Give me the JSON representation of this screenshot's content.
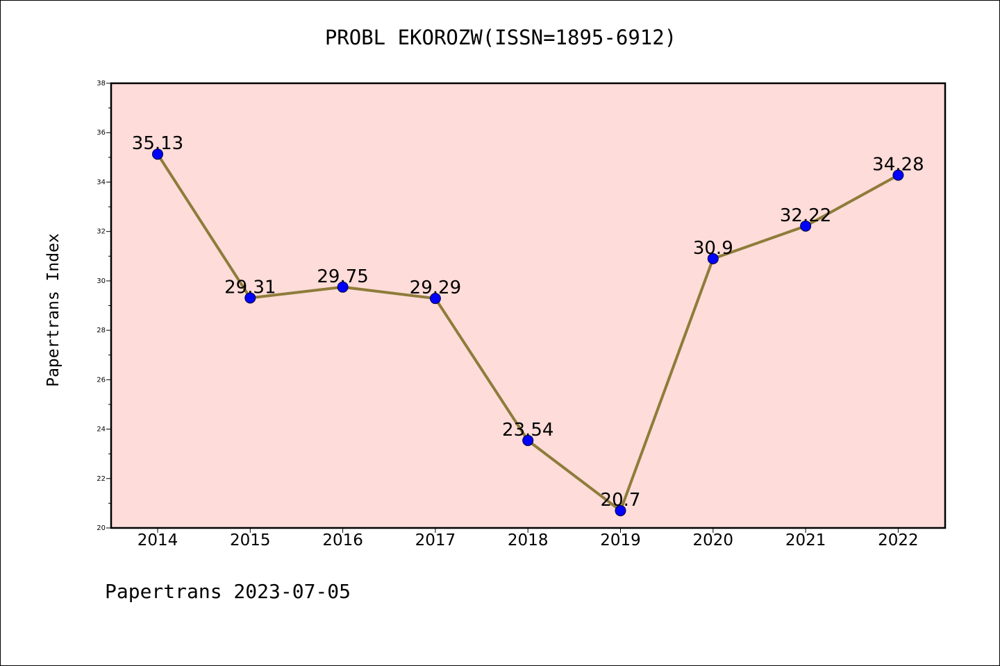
{
  "chart_data": {
    "type": "line",
    "title": "PROBL EKOROZW(ISSN=1895-6912)",
    "xlabel": "",
    "ylabel": "Papertrans Index",
    "categories": [
      "2014",
      "2015",
      "2016",
      "2017",
      "2018",
      "2019",
      "2020",
      "2021",
      "2022"
    ],
    "series": [
      {
        "values": [
          35.13,
          29.31,
          29.75,
          29.29,
          23.54,
          20.7,
          30.9,
          32.22,
          34.28
        ],
        "labels": [
          "35.13",
          "29.31",
          "29.75",
          "29.29",
          "23.54",
          "20.7",
          "30.9",
          "32.22",
          "34.28"
        ]
      }
    ],
    "ylim": [
      20,
      38
    ],
    "yticks": [
      "20",
      "22",
      "24",
      "26",
      "28",
      "30",
      "32",
      "34",
      "36",
      "38"
    ],
    "grid": false,
    "colors": {
      "plot_background": "#fddcd9",
      "line": "#8e7c3a",
      "marker": "#0000ff"
    }
  },
  "footer": "Papertrans 2023-07-05"
}
